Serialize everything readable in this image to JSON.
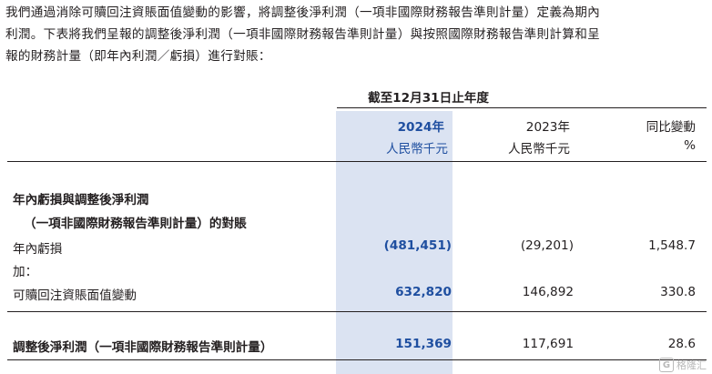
{
  "intro": {
    "line1": "我們通過消除可贖回注資賬面值變動的影響，將調整後淨利潤（一項非國際財務報告準則計量）定義為期內",
    "line2": "利潤。下表將我們呈報的調整後淨利潤（一項非國際財務報告準則計量）與按照國際財務報告準則計算和呈",
    "line3": "報的財務計量（即年內利潤／虧損）進行對賬："
  },
  "table": {
    "period_header": "截至12月31日止年度",
    "columns": [
      {
        "year": "2024年",
        "unit": "人民幣千元"
      },
      {
        "year": "2023年",
        "unit": "人民幣千元"
      },
      {
        "year": "同比變動",
        "unit": "%"
      }
    ],
    "section_title_1": "年內虧損與調整後淨利潤",
    "section_title_2": "（一項非國際財務報告準則計量）的對賬",
    "rows": [
      {
        "label": "年內虧損",
        "v2024": "(481,451)",
        "v2023": "(29,201)",
        "change": "1,548.7"
      },
      {
        "label": "加：",
        "v2024": "",
        "v2023": "",
        "change": ""
      },
      {
        "label": "可贖回注資賬面值變動",
        "v2024": "632,820",
        "v2023": "146,892",
        "change": "330.8"
      }
    ],
    "total": {
      "label": "調整後淨利潤（一項非國際財務報告準則計量）",
      "v2024": "151,369",
      "v2023": "117,691",
      "change": "28.6"
    }
  },
  "watermark": {
    "logo": "G",
    "text": "格隆汇"
  },
  "colors": {
    "highlight": "#dbe3f2",
    "accent_blue": "#1f4fa0",
    "text": "#231f20"
  }
}
